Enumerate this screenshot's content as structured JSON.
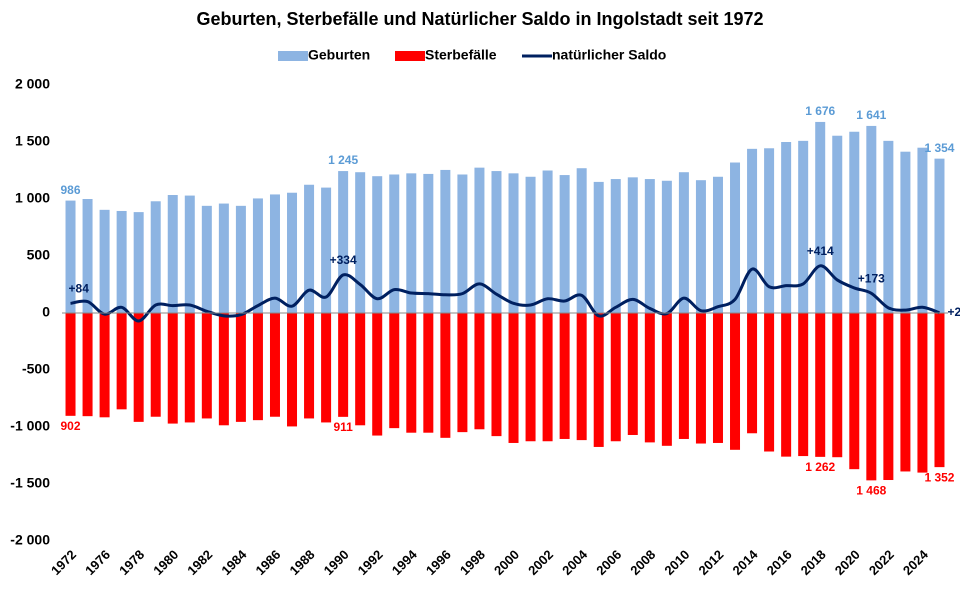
{
  "chart_data": {
    "type": "bar_line",
    "title": "Geburten, Sterbefälle und Natürlicher Saldo in Ingolstadt seit 1972",
    "categories": [
      "1972",
      null,
      "1976",
      null,
      "1978",
      null,
      "1980",
      null,
      "1982",
      null,
      "1984",
      null,
      "1986",
      null,
      "1988",
      null,
      "1990",
      null,
      "1992",
      null,
      "1994",
      null,
      "1996",
      null,
      "1998",
      null,
      "2000",
      null,
      "2002",
      null,
      "2004",
      null,
      "2006",
      null,
      "2008",
      null,
      "2010",
      null,
      "2012",
      null,
      "2014",
      null,
      "2016",
      null,
      "2018",
      null,
      "2020",
      null,
      "2022",
      null,
      "2024",
      null
    ],
    "series": [
      {
        "name": "Geburten",
        "type": "bar",
        "color": "#8db4e2",
        "label_color": "#5b9bd5",
        "values": [
          986,
          1000,
          905,
          895,
          885,
          980,
          1035,
          1030,
          940,
          960,
          940,
          1005,
          1040,
          1055,
          1125,
          1100,
          1245,
          1235,
          1200,
          1215,
          1225,
          1220,
          1255,
          1215,
          1275,
          1245,
          1225,
          1195,
          1250,
          1210,
          1270,
          1150,
          1175,
          1190,
          1175,
          1160,
          1235,
          1165,
          1195,
          1320,
          1440,
          1445,
          1500,
          1510,
          1676,
          1555,
          1590,
          1641,
          1510,
          1415,
          1450,
          1354
        ],
        "value_labels": [
          "986",
          null,
          null,
          null,
          null,
          null,
          null,
          null,
          null,
          null,
          null,
          null,
          null,
          null,
          null,
          null,
          "1 245",
          null,
          null,
          null,
          null,
          null,
          null,
          null,
          null,
          null,
          null,
          null,
          null,
          null,
          null,
          null,
          null,
          null,
          null,
          null,
          null,
          null,
          null,
          null,
          null,
          null,
          null,
          null,
          "1 676",
          null,
          null,
          "1 641",
          null,
          null,
          null,
          "1 354"
        ]
      },
      {
        "name": "Sterbefälle",
        "type": "bar",
        "color": "#ff0000",
        "label_color": "#ff0000",
        "values": [
          -902,
          -905,
          -915,
          -845,
          -955,
          -910,
          -970,
          -960,
          -925,
          -985,
          -955,
          -940,
          -910,
          -995,
          -925,
          -960,
          -911,
          -985,
          -1075,
          -1010,
          -1050,
          -1050,
          -1095,
          -1045,
          -1020,
          -1080,
          -1140,
          -1125,
          -1125,
          -1105,
          -1115,
          -1175,
          -1125,
          -1070,
          -1135,
          -1165,
          -1105,
          -1145,
          -1140,
          -1200,
          -1055,
          -1215,
          -1260,
          -1255,
          -1262,
          -1265,
          -1370,
          -1468,
          -1465,
          -1390,
          -1400,
          -1352
        ],
        "value_labels": [
          "902",
          null,
          null,
          null,
          null,
          null,
          null,
          null,
          null,
          null,
          null,
          null,
          null,
          null,
          null,
          null,
          "911",
          null,
          null,
          null,
          null,
          null,
          null,
          null,
          null,
          null,
          null,
          null,
          null,
          null,
          null,
          null,
          null,
          null,
          null,
          null,
          null,
          null,
          null,
          null,
          null,
          null,
          null,
          null,
          "1 262",
          null,
          null,
          "1 468",
          null,
          null,
          null,
          "1 352"
        ]
      },
      {
        "name": "natürlicher Saldo",
        "type": "line",
        "color": "#002060",
        "label_color": "#002060",
        "values": [
          84,
          100,
          -10,
          50,
          -70,
          70,
          65,
          70,
          15,
          -25,
          -15,
          65,
          130,
          60,
          200,
          140,
          334,
          250,
          125,
          205,
          175,
          170,
          160,
          170,
          255,
          165,
          85,
          70,
          125,
          105,
          155,
          -25,
          50,
          120,
          40,
          -5,
          130,
          20,
          55,
          120,
          385,
          230,
          240,
          255,
          414,
          290,
          220,
          173,
          45,
          25,
          50,
          2
        ],
        "value_labels": [
          "+84",
          null,
          null,
          null,
          null,
          null,
          null,
          null,
          null,
          null,
          null,
          null,
          null,
          null,
          null,
          null,
          "+334",
          null,
          null,
          null,
          null,
          null,
          null,
          null,
          null,
          null,
          null,
          null,
          null,
          null,
          null,
          null,
          null,
          null,
          null,
          null,
          null,
          null,
          null,
          null,
          null,
          null,
          null,
          null,
          "+414",
          null,
          null,
          "+173",
          null,
          null,
          null,
          "+2"
        ]
      }
    ],
    "ylim": [
      -2000,
      2000
    ],
    "yticks": [
      {
        "value": -2000,
        "label": "-2 000"
      },
      {
        "value": -1500,
        "label": "-1 500"
      },
      {
        "value": -1000,
        "label": "-1 000"
      },
      -500,
      0,
      500,
      {
        "value": 1000,
        "label": "1 000"
      },
      {
        "value": 1500,
        "label": "1 500"
      },
      {
        "value": 2000,
        "label": "2 000"
      }
    ],
    "grid": false,
    "legend": "top"
  }
}
